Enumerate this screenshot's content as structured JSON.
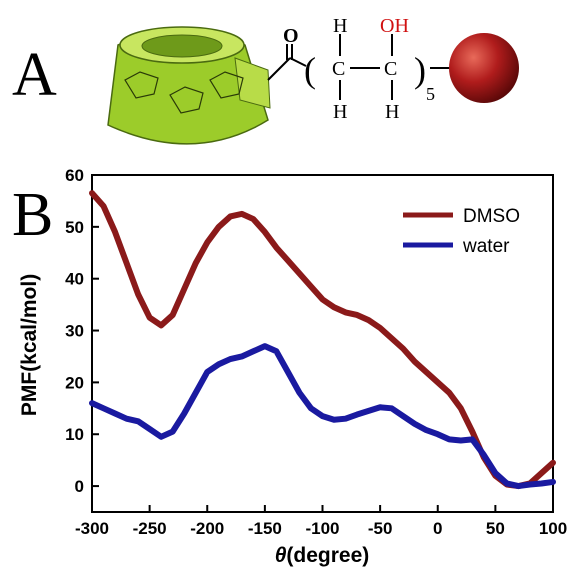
{
  "panel_labels": [
    "A",
    "B"
  ],
  "molecule": {
    "carbonyl_o": "O",
    "left_paren": "(",
    "right_paren": ")",
    "carbons": [
      "C",
      "C"
    ],
    "hydrogens": [
      "H",
      "H",
      "H"
    ],
    "hydroxyl": "OH",
    "repeat": "5"
  },
  "chart_data": {
    "type": "line",
    "x_label": {
      "symbol": "θ",
      "text": "(degree)"
    },
    "y_label": "PMF(kcal/mol)",
    "x": [
      -300,
      -290,
      -280,
      -270,
      -260,
      -250,
      -240,
      -230,
      -220,
      -210,
      -200,
      -190,
      -180,
      -170,
      -160,
      -150,
      -140,
      -130,
      -120,
      -110,
      -100,
      -90,
      -80,
      -70,
      -60,
      -50,
      -40,
      -30,
      -20,
      -10,
      0,
      10,
      20,
      30,
      40,
      50,
      60,
      70,
      80,
      90,
      100
    ],
    "series": [
      {
        "name": "DMSO",
        "color": "#8b1a1a",
        "values": [
          56.5,
          54,
          49,
          43,
          37,
          32.5,
          31,
          33,
          38,
          43,
          47,
          50,
          52,
          52.5,
          51.5,
          49,
          46,
          43.5,
          41,
          38.5,
          36,
          34.5,
          33.5,
          33,
          32,
          30.5,
          28.5,
          26.5,
          24,
          22,
          20,
          18,
          15,
          10.5,
          5.5,
          2,
          0.3,
          0,
          0.5,
          2.5,
          4.5
        ]
      },
      {
        "name": "water",
        "color": "#1a1aa0",
        "values": [
          16,
          15,
          14,
          13,
          12.5,
          11,
          9.5,
          10.5,
          14,
          18,
          22,
          23.5,
          24.5,
          25,
          26,
          27,
          26,
          22,
          18,
          15,
          13.5,
          12.8,
          13,
          13.8,
          14.5,
          15.2,
          15,
          13.5,
          12,
          10.8,
          10,
          9,
          8.8,
          9,
          6,
          2.5,
          0.5,
          0,
          0.3,
          0.5,
          0.8
        ]
      }
    ],
    "xlim": [
      -300,
      100
    ],
    "xticks": [
      -300,
      -250,
      -200,
      -150,
      -100,
      -50,
      0,
      50,
      100
    ],
    "ylim": [
      -5,
      60
    ],
    "yticks": [
      0,
      10,
      20,
      30,
      40,
      50,
      60
    ],
    "legend": "upper-right"
  }
}
